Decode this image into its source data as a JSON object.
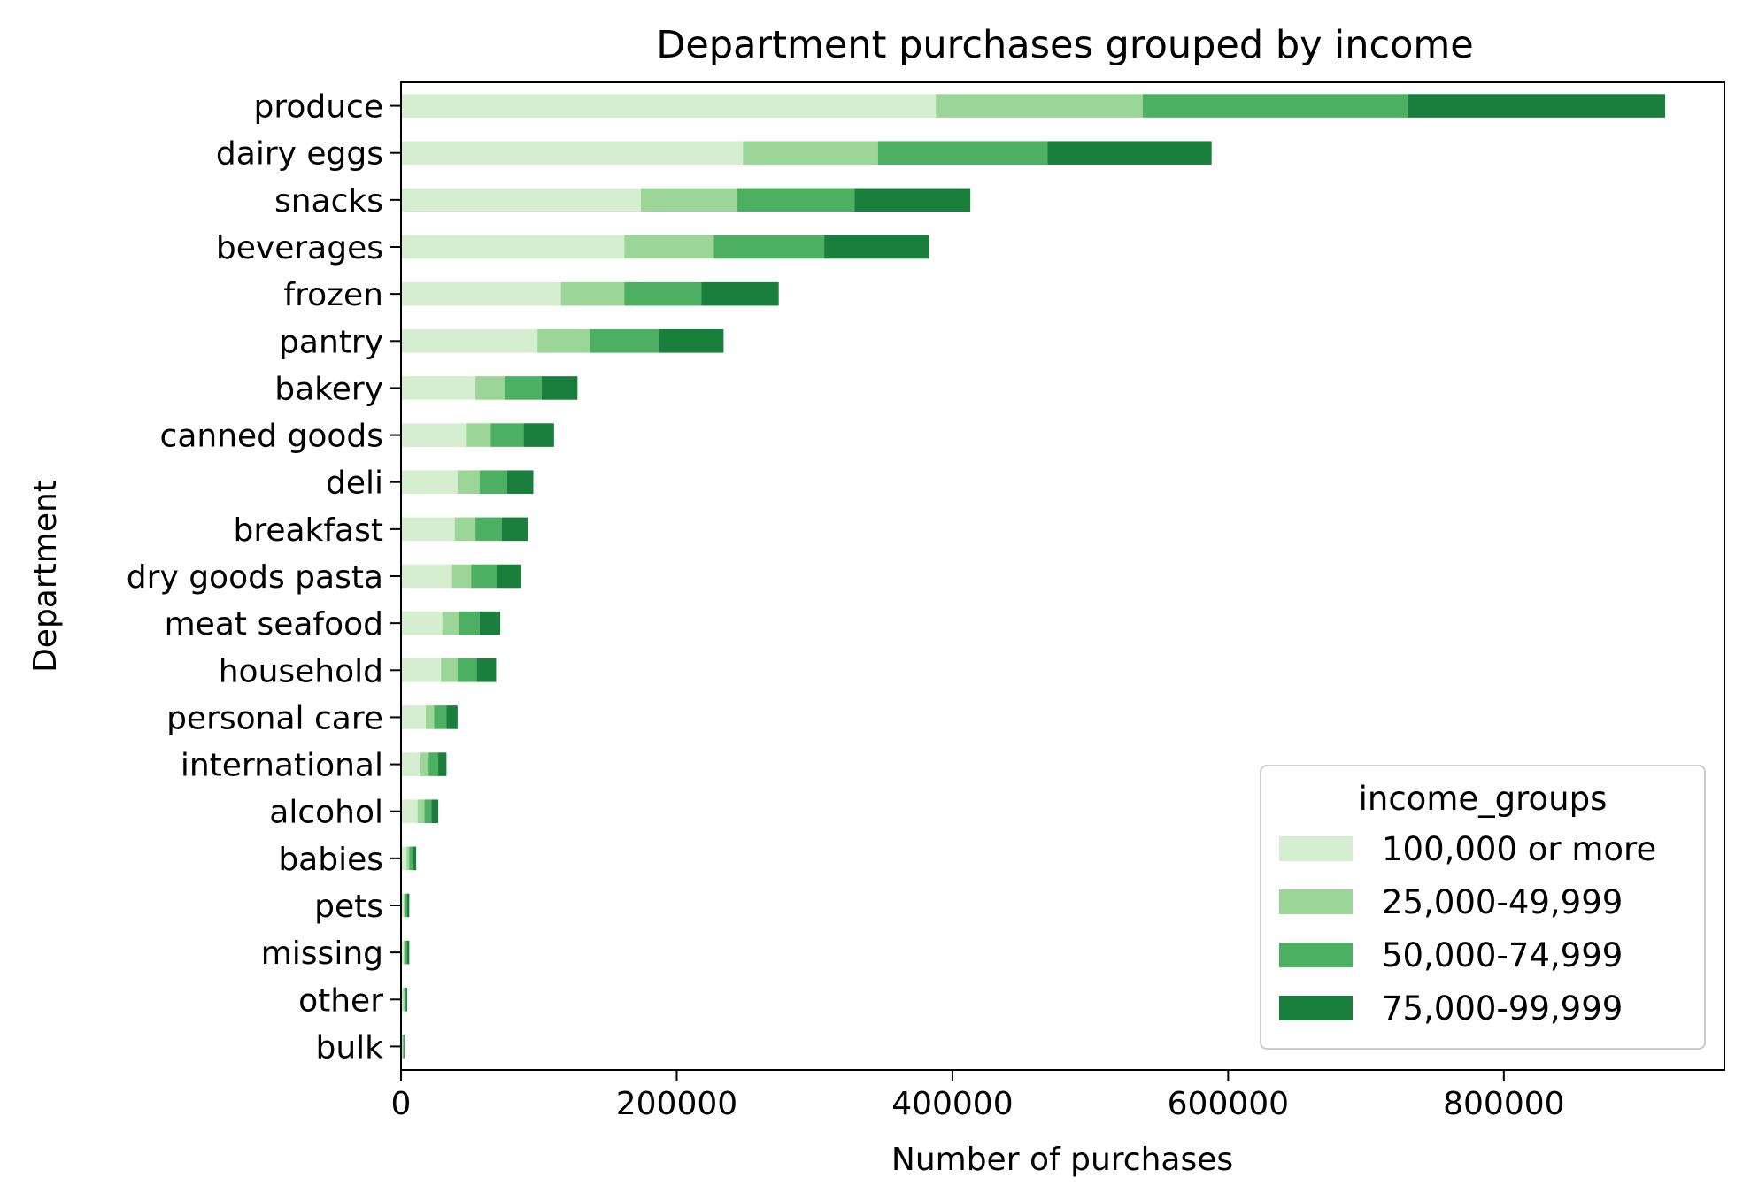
{
  "chart_data": {
    "type": "bar",
    "orientation": "horizontal",
    "stacked": true,
    "title": "Department purchases grouped by income",
    "xlabel": "Number of purchases",
    "ylabel": "Department",
    "xlim": [
      0,
      960000
    ],
    "xticks": [
      0,
      200000,
      400000,
      600000,
      800000
    ],
    "xtick_labels": [
      "0",
      "200000",
      "400000",
      "600000",
      "800000"
    ],
    "grid": false,
    "legend": {
      "title": "income_groups",
      "placement": "bottom-right"
    },
    "categories": [
      "produce",
      "dairy eggs",
      "snacks",
      "beverages",
      "frozen",
      "pantry",
      "bakery",
      "canned goods",
      "deli",
      "breakfast",
      "dry goods pasta",
      "meat seafood",
      "household",
      "personal care",
      "international",
      "alcohol",
      "babies",
      "pets",
      "missing",
      "other",
      "bulk"
    ],
    "series": [
      {
        "name": "100,000 or more",
        "color": "#d4eecf",
        "values": [
          388000,
          248000,
          174000,
          162000,
          116000,
          99000,
          54000,
          47000,
          41000,
          39000,
          37000,
          30000,
          29000,
          18000,
          14000,
          12000,
          4000,
          2000,
          2000,
          1500,
          1000
        ]
      },
      {
        "name": "25,000-49,999",
        "color": "#9bd598",
        "values": [
          150000,
          98000,
          70000,
          65000,
          46000,
          38000,
          21000,
          18000,
          16000,
          15000,
          14000,
          12000,
          12000,
          6000,
          6000,
          5000,
          2000,
          1000,
          1000,
          1000,
          500
        ]
      },
      {
        "name": "50,000-74,999",
        "color": "#4daf62",
        "values": [
          192000,
          123000,
          85000,
          80000,
          56000,
          50000,
          27000,
          24000,
          20000,
          19000,
          19000,
          15000,
          14000,
          9000,
          7000,
          5000,
          2500,
          1500,
          1500,
          1000,
          500
        ]
      },
      {
        "name": "75,000-99,999",
        "color": "#1a7f3c",
        "values": [
          187000,
          119000,
          84000,
          76000,
          56000,
          47000,
          26000,
          22000,
          19000,
          19000,
          17000,
          15000,
          14000,
          8000,
          6000,
          5000,
          2500,
          1500,
          1500,
          1000,
          500
        ]
      }
    ]
  }
}
